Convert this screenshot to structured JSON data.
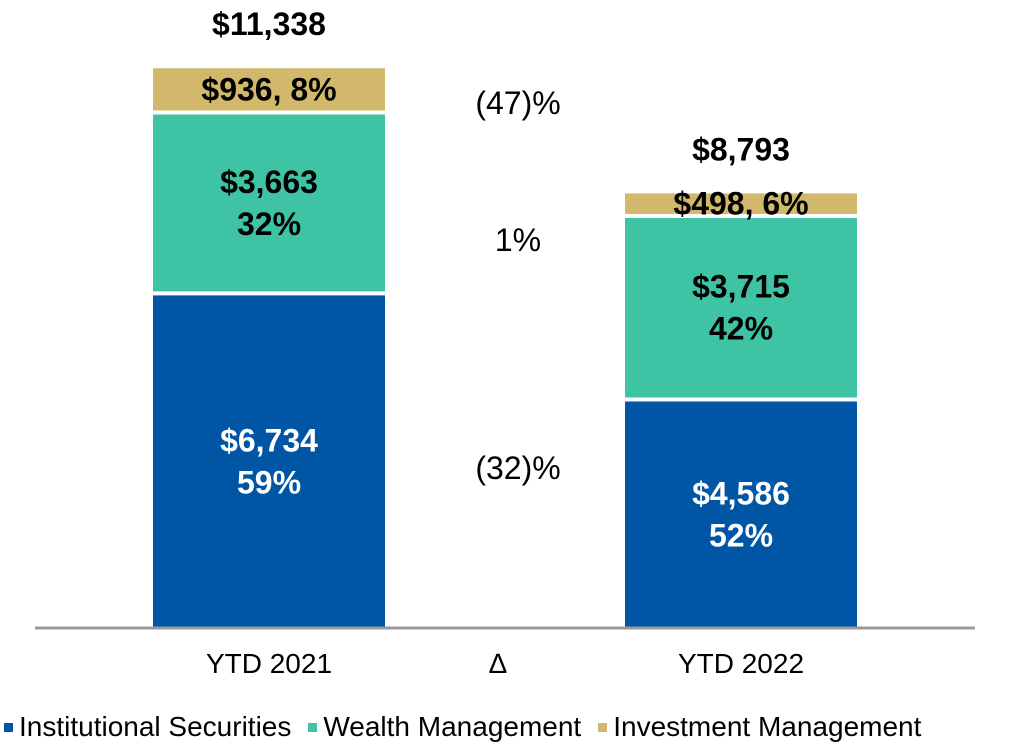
{
  "chart_data": {
    "type": "bar",
    "stacked": true,
    "categories": [
      "YTD 2021",
      "YTD 2022"
    ],
    "delta_axis_label": "∆",
    "series": [
      {
        "name": "Institutional Securities",
        "color": "#0055a5",
        "values": [
          6734,
          4586
        ],
        "labels": [
          [
            "$6,734",
            "59%"
          ],
          [
            "$4,586",
            "52%"
          ]
        ],
        "label_color": "#ffffff",
        "delta": "(32)%"
      },
      {
        "name": "Wealth Management",
        "color": "#3ec4a4",
        "values": [
          3663,
          3715
        ],
        "labels": [
          [
            "$3,663",
            "32%"
          ],
          [
            "$3,715",
            "42%"
          ]
        ],
        "label_color": "#000000",
        "delta": "1%"
      },
      {
        "name": "Investment Management",
        "color": "#d1b86a",
        "values": [
          936,
          498
        ],
        "labels": [
          [
            "$936, 8%"
          ],
          [
            "$498, 6%"
          ]
        ],
        "label_color": "#000000",
        "delta": "(47)%"
      }
    ],
    "totals": [
      "$11,338",
      "$8,793"
    ],
    "ylim": [
      0,
      11338
    ],
    "legend": "bottom",
    "grid": false
  }
}
